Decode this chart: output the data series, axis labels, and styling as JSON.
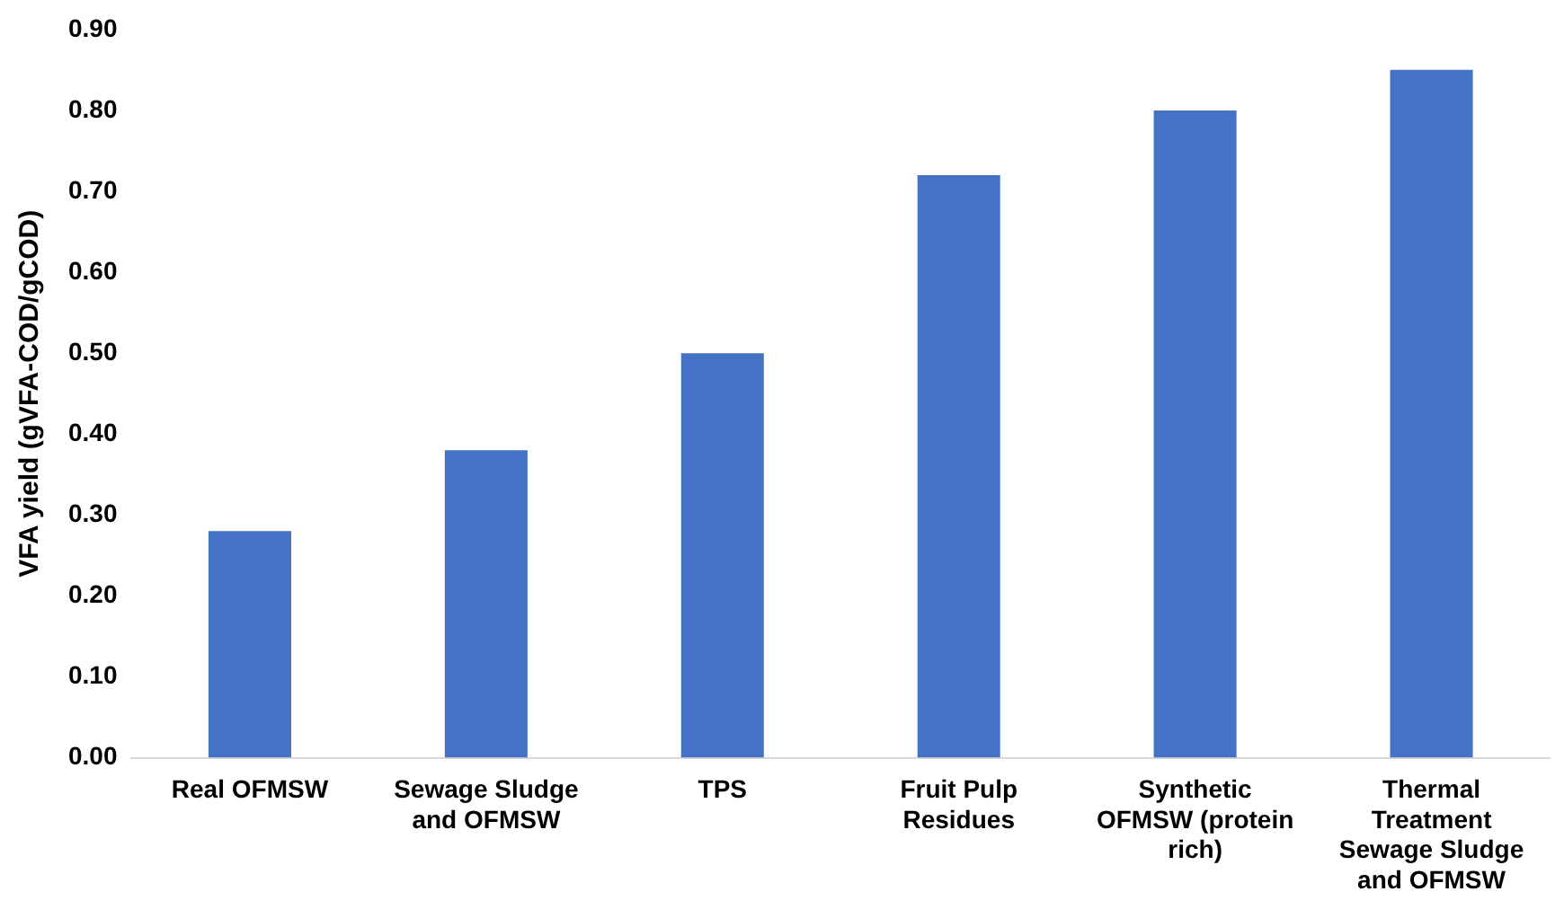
{
  "chart_data": {
    "type": "bar",
    "ylabel": "VFA yield (gVFA-COD/gCOD)",
    "categories": [
      "Real OFMSW",
      "Sewage Sludge and OFMSW",
      "TPS",
      "Fruit Pulp Residues",
      "Synthetic OFMSW (protein rich)",
      "Thermal Treatment Sewage Sludge and OFMSW"
    ],
    "values": [
      0.28,
      0.38,
      0.5,
      0.72,
      0.8,
      0.85
    ],
    "color": "#4472c4",
    "ylim": [
      0,
      0.9
    ],
    "yticks": [
      {
        "value": 0,
        "label": "0.00"
      },
      {
        "value": 0.1,
        "label": "0.10"
      },
      {
        "value": 0.2,
        "label": "0.20"
      },
      {
        "value": 0.3,
        "label": "0.30"
      },
      {
        "value": 0.4,
        "label": "0.40"
      },
      {
        "value": 0.5,
        "label": "0.50"
      },
      {
        "value": 0.6,
        "label": "0.60"
      },
      {
        "value": 0.7,
        "label": "0.70"
      },
      {
        "value": 0.8,
        "label": "0.80"
      },
      {
        "value": 0.9,
        "label": "0.90"
      }
    ],
    "grid": false,
    "legend": false
  }
}
